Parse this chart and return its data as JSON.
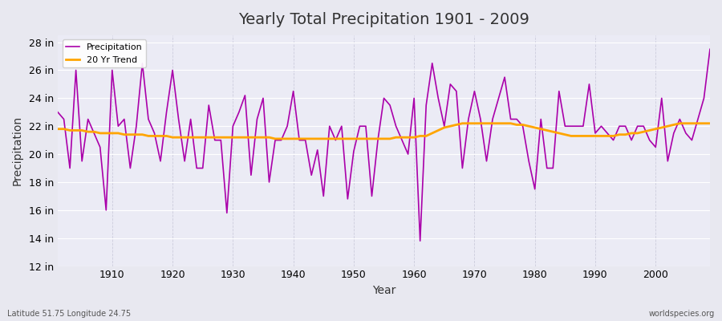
{
  "title": "Yearly Total Precipitation 1901 - 2009",
  "xlabel": "Year",
  "ylabel": "Precipitation",
  "footnote_left": "Latitude 51.75 Longitude 24.75",
  "footnote_right": "worldspecies.org",
  "legend_entries": [
    "Precipitation",
    "20 Yr Trend"
  ],
  "precip_color": "#AA00AA",
  "trend_color": "#FFA500",
  "bg_color": "#E8E8F0",
  "plot_bg_color": "#EBEBF5",
  "ylim": [
    12,
    28.5
  ],
  "yticks": [
    12,
    14,
    16,
    18,
    20,
    22,
    24,
    26,
    28
  ],
  "ytick_labels": [
    "12 in",
    "14 in",
    "16 in",
    "18 in",
    "20 in",
    "22 in",
    "24 in",
    "26 in",
    "28 in"
  ],
  "years": [
    1901,
    1902,
    1903,
    1904,
    1905,
    1906,
    1907,
    1908,
    1909,
    1910,
    1911,
    1912,
    1913,
    1914,
    1915,
    1916,
    1917,
    1918,
    1919,
    1920,
    1921,
    1922,
    1923,
    1924,
    1925,
    1926,
    1927,
    1928,
    1929,
    1930,
    1931,
    1932,
    1933,
    1934,
    1935,
    1936,
    1937,
    1938,
    1939,
    1940,
    1941,
    1942,
    1943,
    1944,
    1945,
    1946,
    1947,
    1948,
    1949,
    1950,
    1951,
    1952,
    1953,
    1954,
    1955,
    1956,
    1957,
    1958,
    1959,
    1960,
    1961,
    1962,
    1963,
    1964,
    1965,
    1966,
    1967,
    1968,
    1969,
    1970,
    1971,
    1972,
    1973,
    1974,
    1975,
    1976,
    1977,
    1978,
    1979,
    1980,
    1981,
    1982,
    1983,
    1984,
    1985,
    1986,
    1987,
    1988,
    1989,
    1990,
    1991,
    1992,
    1993,
    1994,
    1995,
    1996,
    1997,
    1998,
    1999,
    2000,
    2001,
    2002,
    2003,
    2004,
    2005,
    2006,
    2007,
    2008,
    2009
  ],
  "precipitation": [
    23.0,
    22.5,
    19.0,
    26.0,
    19.5,
    22.5,
    21.5,
    20.5,
    16.0,
    26.0,
    22.0,
    22.5,
    19.0,
    22.0,
    26.5,
    22.5,
    21.5,
    19.5,
    23.0,
    26.0,
    22.5,
    19.5,
    22.5,
    19.0,
    19.0,
    23.5,
    21.0,
    21.0,
    15.8,
    22.0,
    23.0,
    24.2,
    18.5,
    22.5,
    24.0,
    18.0,
    21.0,
    21.0,
    22.0,
    24.5,
    21.0,
    21.0,
    18.5,
    20.3,
    17.0,
    22.0,
    21.0,
    22.0,
    16.8,
    20.2,
    22.0,
    22.0,
    17.0,
    21.0,
    24.0,
    23.5,
    22.0,
    21.0,
    20.0,
    24.0,
    13.8,
    23.5,
    26.5,
    24.0,
    22.0,
    25.0,
    24.5,
    19.0,
    22.5,
    24.5,
    22.5,
    19.5,
    22.5,
    24.0,
    25.5,
    22.5,
    22.5,
    22.0,
    19.5,
    17.5,
    22.5,
    19.0,
    19.0,
    24.5,
    22.0,
    22.0,
    22.0,
    22.0,
    25.0,
    21.5,
    22.0,
    21.5,
    21.0,
    22.0,
    22.0,
    21.0,
    22.0,
    22.0,
    21.0,
    20.5,
    24.0,
    19.5,
    21.5,
    22.5,
    21.5,
    21.0,
    22.5,
    24.0,
    27.5
  ],
  "trend": [
    21.8,
    21.8,
    21.7,
    21.7,
    21.7,
    21.6,
    21.6,
    21.5,
    21.5,
    21.5,
    21.5,
    21.4,
    21.4,
    21.4,
    21.4,
    21.3,
    21.3,
    21.3,
    21.3,
    21.2,
    21.2,
    21.2,
    21.2,
    21.2,
    21.2,
    21.2,
    21.2,
    21.2,
    21.2,
    21.2,
    21.2,
    21.2,
    21.2,
    21.2,
    21.2,
    21.2,
    21.1,
    21.1,
    21.1,
    21.1,
    21.1,
    21.1,
    21.1,
    21.1,
    21.1,
    21.1,
    21.1,
    21.1,
    21.1,
    21.1,
    21.1,
    21.1,
    21.1,
    21.1,
    21.1,
    21.1,
    21.2,
    21.2,
    21.2,
    21.2,
    21.3,
    21.3,
    21.5,
    21.7,
    21.9,
    22.0,
    22.1,
    22.2,
    22.2,
    22.2,
    22.2,
    22.2,
    22.2,
    22.2,
    22.2,
    22.2,
    22.1,
    22.1,
    22.0,
    21.9,
    21.8,
    21.7,
    21.6,
    21.5,
    21.4,
    21.3,
    21.3,
    21.3,
    21.3,
    21.3,
    21.3,
    21.3,
    21.3,
    21.4,
    21.4,
    21.5,
    21.5,
    21.6,
    21.7,
    21.8,
    21.9,
    22.0,
    22.1,
    22.2,
    22.2,
    22.2,
    22.2,
    22.2,
    22.2
  ]
}
